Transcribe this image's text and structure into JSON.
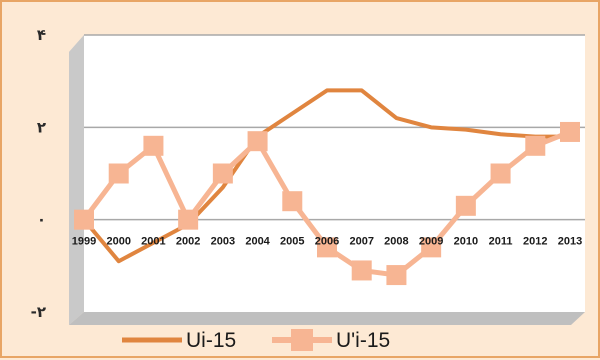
{
  "chart_data": {
    "type": "line",
    "title": "",
    "xlabel": "",
    "ylabel": "",
    "categories": [
      "1999",
      "2000",
      "2001",
      "2002",
      "2003",
      "2004",
      "2005",
      "2006",
      "2007",
      "2008",
      "2009",
      "2010",
      "2011",
      "2012",
      "2013"
    ],
    "yticks": [
      {
        "value": 4,
        "label": "۴"
      },
      {
        "value": 2,
        "label": "۲"
      },
      {
        "value": 0,
        "label": "۰"
      },
      {
        "value": -2,
        "label": "-۲"
      }
    ],
    "ylim": [
      -2,
      4
    ],
    "grid": true,
    "legend_position": "bottom",
    "series": [
      {
        "name": "Ui-15",
        "color": "#e0853f",
        "marker": "none",
        "values": [
          0.0,
          -0.9,
          -0.5,
          -0.1,
          0.7,
          1.8,
          2.3,
          2.8,
          2.8,
          2.2,
          2.0,
          1.95,
          1.85,
          1.8,
          1.8
        ]
      },
      {
        "name": "U'i-15",
        "color": "#f7b593",
        "marker": "square",
        "values": [
          0.0,
          1.0,
          1.6,
          0.0,
          1.0,
          1.7,
          0.4,
          -0.6,
          -1.1,
          -1.2,
          -0.6,
          0.3,
          1.0,
          1.6,
          1.9
        ]
      }
    ]
  }
}
